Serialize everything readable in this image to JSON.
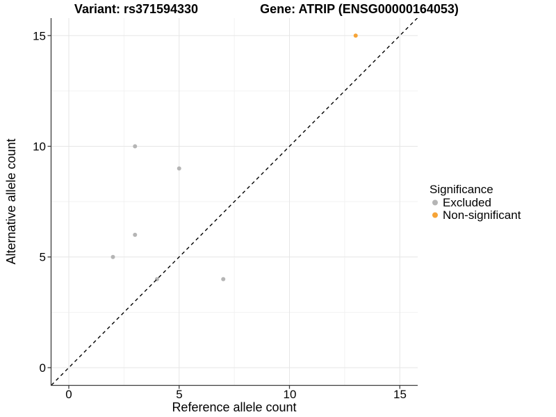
{
  "titles": {
    "variant": "Variant: rs371594330",
    "gene": "Gene: ATRIP (ENSG00000164053)"
  },
  "axes": {
    "x": {
      "label": "Reference allele count",
      "ticks": [
        "0",
        "5",
        "10",
        "15"
      ]
    },
    "y": {
      "label": "Alternative allele count",
      "ticks": [
        "0",
        "5",
        "10",
        "15"
      ]
    }
  },
  "legend": {
    "title": "Significance",
    "items": [
      {
        "label": "Excluded",
        "color": "#B5B5B5"
      },
      {
        "label": "Non-significant",
        "color": "#F6A437"
      }
    ]
  },
  "colors": {
    "background": "#ffffff",
    "grid_major": "#e6e6e6",
    "grid_minor": "#f2f2f2",
    "axis_line": "#3c3c3c",
    "identity_line": "#000000",
    "excluded_point": "#B5B5B5",
    "non_significant_point": "#F6A437"
  },
  "chart_data": {
    "type": "scatter",
    "title": "Variant: rs371594330  /  Gene: ATRIP (ENSG00000164053)",
    "xlabel": "Reference allele count",
    "ylabel": "Alternative allele count",
    "xlim": [
      0,
      15
    ],
    "ylim": [
      0,
      15
    ],
    "major_ticks": [
      0,
      5,
      10,
      15
    ],
    "minor_gridlines": [
      2.5,
      7.5,
      12.5
    ],
    "grid": true,
    "legend_position": "right",
    "legend_title": "Significance",
    "series": [
      {
        "name": "Excluded",
        "color": "#B5B5B5",
        "points": [
          [
            2,
            5
          ],
          [
            3,
            6
          ],
          [
            3,
            10
          ],
          [
            4,
            4
          ],
          [
            5,
            9
          ],
          [
            7,
            4
          ]
        ]
      },
      {
        "name": "Non-significant",
        "color": "#F6A437",
        "points": [
          [
            13,
            15
          ]
        ]
      }
    ],
    "reference_line": {
      "type": "identity",
      "equation": "y = x",
      "style": "dashed",
      "color": "#000000"
    }
  }
}
